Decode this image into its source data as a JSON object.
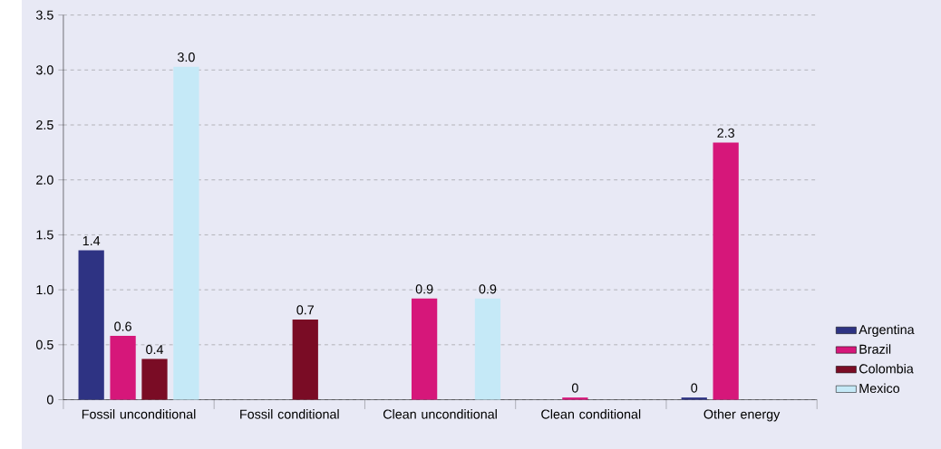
{
  "chart_data": {
    "type": "bar",
    "categories": [
      "Fossil unconditional",
      "Fossil conditional",
      "Clean unconditional",
      "Clean conditional",
      "Other energy"
    ],
    "series": [
      {
        "name": "Argentina",
        "color": "#2e3383",
        "values": [
          1.36,
          null,
          null,
          null,
          0.02
        ],
        "value_labels": [
          "1.4",
          null,
          null,
          null,
          "0"
        ]
      },
      {
        "name": "Brazil",
        "color": "#d6177a",
        "values": [
          0.58,
          null,
          0.92,
          0.02,
          2.34
        ],
        "value_labels": [
          "0.6",
          null,
          "0.9",
          "0",
          "2.3"
        ]
      },
      {
        "name": "Colombia",
        "color": "#7a0c25",
        "values": [
          0.37,
          0.73,
          null,
          null,
          null
        ],
        "value_labels": [
          "0.4",
          "0.7",
          null,
          null,
          null
        ]
      },
      {
        "name": "Mexico",
        "color": "#c5e9f7",
        "values": [
          3.03,
          null,
          0.92,
          null,
          null
        ],
        "value_labels": [
          "3.0",
          null,
          "0.9",
          null,
          null
        ]
      }
    ],
    "ylim": [
      0,
      3.5
    ],
    "yticks": [
      0,
      0.5,
      {
        "value": 1,
        "label": "1.0"
      },
      1.5,
      {
        "value": 2,
        "label": "2.0"
      },
      2.5,
      {
        "value": 3,
        "label": "3.0"
      },
      3.5
    ],
    "grid": "y",
    "legend": "right"
  }
}
